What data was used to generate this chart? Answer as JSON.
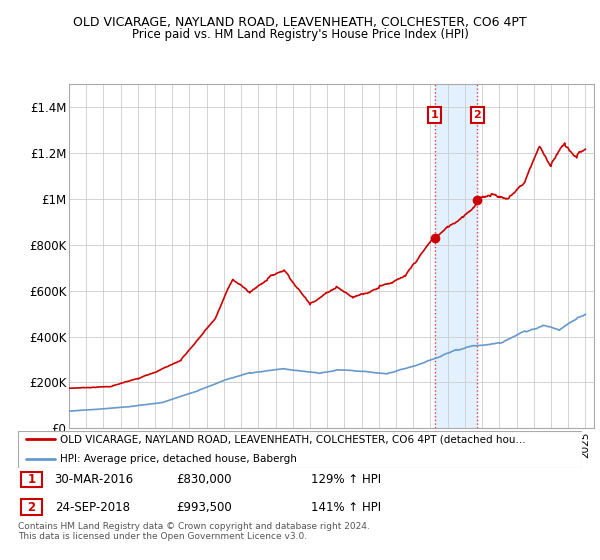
{
  "title": "OLD VICARAGE, NAYLAND ROAD, LEAVENHEATH, COLCHESTER, CO6 4PT",
  "subtitle": "Price paid vs. HM Land Registry's House Price Index (HPI)",
  "legend_line1": "OLD VICARAGE, NAYLAND ROAD, LEAVENHEATH, COLCHESTER, CO6 4PT (detached hou...",
  "legend_line2": "HPI: Average price, detached house, Babergh",
  "annotation1_date": "30-MAR-2016",
  "annotation1_price": "£830,000",
  "annotation1_hpi": "129% ↑ HPI",
  "annotation2_date": "24-SEP-2018",
  "annotation2_price": "£993,500",
  "annotation2_hpi": "141% ↑ HPI",
  "footer": "Contains HM Land Registry data © Crown copyright and database right 2024.\nThis data is licensed under the Open Government Licence v3.0.",
  "red_line_color": "#cc0000",
  "blue_line_color": "#6699cc",
  "annotation_box_color": "#cc0000",
  "highlight_fill": "#ddeeff",
  "highlight_border": "#dd4444",
  "ylim": [
    0,
    1500000
  ],
  "yticks": [
    0,
    200000,
    400000,
    600000,
    800000,
    1000000,
    1200000,
    1400000
  ],
  "ytick_labels": [
    "£0",
    "£200K",
    "£400K",
    "£600K",
    "£800K",
    "£1M",
    "£1.2M",
    "£1.4M"
  ],
  "sale1_x": 2016.25,
  "sale1_y": 830000,
  "sale2_x": 2018.73,
  "sale2_y": 993500,
  "xmin": 1995,
  "xmax": 2025.5
}
